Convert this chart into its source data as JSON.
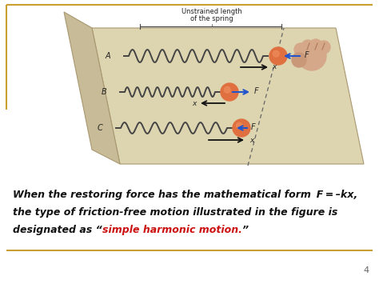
{
  "bg_color": "#ffffff",
  "diagram_bg": "#e8ddc8",
  "platform_top": "#ddd4b0",
  "platform_left_wall": "#c8bc98",
  "border_color_gold": "#c8a030",
  "slide_number": "4",
  "text_line1": "When the restoring force has the mathematical form  F = –kx,",
  "text_line2": "the type of friction-free motion illustrated in the figure is",
  "text_line3_pre": "designated as “",
  "text_line3_highlight": "simple harmonic motion.",
  "text_line3_post": "”",
  "label_unstrained_1": "Unstrained length",
  "label_unstrained_2": "of the spring",
  "label_A": "A",
  "label_B": "B",
  "label_C": "C",
  "label_F": "F",
  "label_x": "x",
  "text_color": "#111111",
  "highlight_color": "#cc1111",
  "arrow_blue": "#2255cc",
  "arrow_black": "#111111",
  "spring_color": "#444444",
  "ball_color_center": "#e07040",
  "ball_color_edge": "#c85020",
  "hand_color": "#d4a888"
}
